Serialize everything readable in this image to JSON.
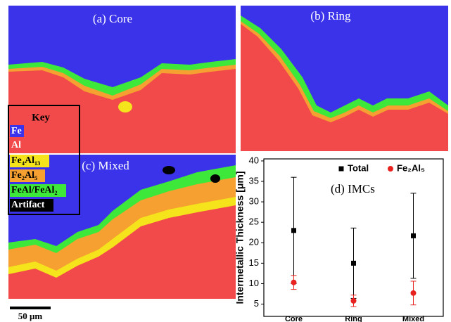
{
  "panels": [
    {
      "label": "(a) Core"
    },
    {
      "label": "(b) Ring"
    },
    {
      "label": "(c) Mixed"
    }
  ],
  "key": {
    "title": "Key",
    "entries": [
      "Fe",
      "Al",
      "Fe₄Al₁₃",
      "Fe₂Al₅",
      "FeAl/FeAl₂",
      "Artifact"
    ]
  },
  "scale_bar": "50 μm",
  "chart_data": {
    "type": "errorbar",
    "annotation": "(d) IMCs",
    "y_label": "Intermetallic Thickness [μm]",
    "categories": [
      "Core",
      "Ring",
      "Mixed"
    ],
    "series": [
      {
        "name": "Total",
        "color": "#000000",
        "marker": "square",
        "values": [
          23,
          15,
          21.7
        ],
        "errors": [
          13,
          8.6,
          10.4
        ]
      },
      {
        "name": "Fe₂Al₅",
        "color": "#e8231f",
        "marker": "circle",
        "values": [
          10.3,
          5.8,
          7.7
        ],
        "errors": [
          1.7,
          1.4,
          2.9
        ]
      }
    ],
    "ylim": [
      2,
      40.5
    ],
    "yticks": [
      5,
      10,
      15,
      20,
      25,
      30,
      35,
      40
    ],
    "legend": "upper right"
  }
}
